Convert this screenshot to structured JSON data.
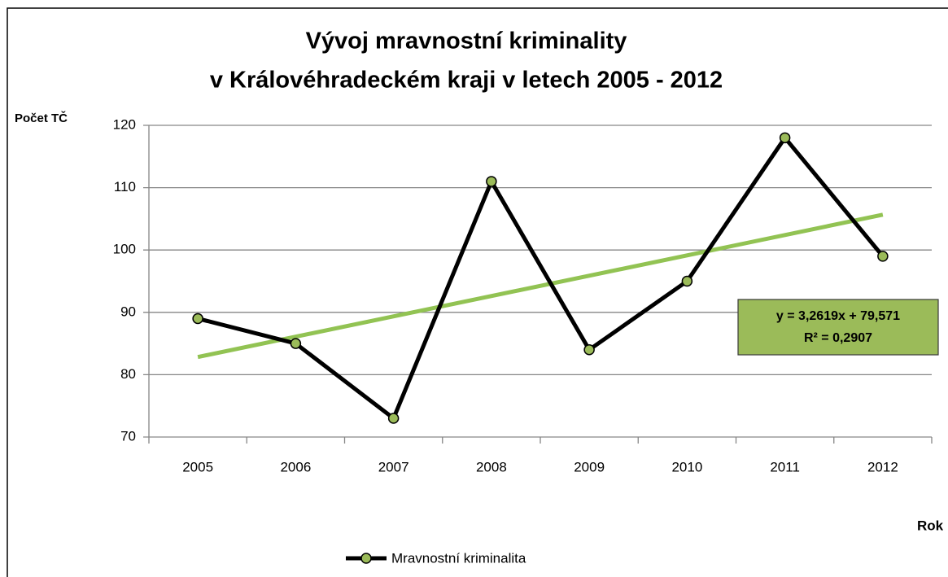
{
  "chart_data": {
    "type": "line",
    "title": "Vývoj mravnostní kriminality",
    "subtitle": "v Královéhradeckém kraji v letech 2005 - 2012",
    "y_label": "Počet TČ",
    "x_label": "Rok",
    "categories": [
      "2005",
      "2006",
      "2007",
      "2008",
      "2009",
      "2010",
      "2011",
      "2012"
    ],
    "series": [
      {
        "name": "Mravnostní kriminalita",
        "color": "#000000",
        "marker_color": "#9bbb59",
        "values": [
          89,
          85,
          73,
          111,
          84,
          95,
          118,
          99
        ]
      }
    ],
    "ylim": [
      70,
      120
    ],
    "yticks": [
      70,
      80,
      90,
      100,
      110,
      120
    ],
    "grid": true,
    "legend": "bottom",
    "trendline": {
      "slope": 3.2619,
      "intercept": 79.571,
      "color": "#92c353",
      "box_color": "#9bbb59",
      "equation": "y = 3,2619x + 79,571",
      "r2": "R² = 0,2907"
    }
  }
}
